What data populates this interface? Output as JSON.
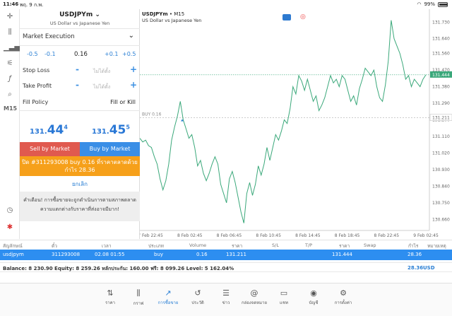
{
  "status": {
    "time": "11:46",
    "date": "พฤ. 9 ก.พ.",
    "battery": "99%"
  },
  "toolbar": {
    "timeframe": "M15",
    "icons": [
      "crosshair-icon",
      "candles-icon",
      "bars-icon",
      "settings-icon",
      "function-icon",
      "objects-icon",
      "timeframe-label",
      "clock-icon",
      "mt-icon"
    ]
  },
  "panel": {
    "symbol": "USDJPYm",
    "symbol_desc": "US Dollar vs Japanese Yen",
    "execution": "Market Execution",
    "volume": {
      "m05": "-0.5",
      "m01": "-0.1",
      "value": "0.16",
      "p01": "+0.1",
      "p05": "+0.5"
    },
    "stop_loss": {
      "label": "Stop Loss",
      "minus": "-",
      "placeholder": "ไม่ได้ตั้ง",
      "plus": "+"
    },
    "take_profit": {
      "label": "Take Profit",
      "minus": "-",
      "placeholder": "ไม่ได้ตั้ง",
      "plus": "+"
    },
    "fill_policy": {
      "label": "Fill Policy",
      "value": "Fill or Kill"
    },
    "bid": {
      "main": "131.",
      "big": "44",
      "sup": "4"
    },
    "ask": {
      "main": "131.",
      "big": "45",
      "sup": "5"
    },
    "sell_label": "Sell by Market",
    "buy_label": "Buy by Market",
    "close_line1": "ปิด #311293008 buy 0.16 ที่ราคาตลาดด้วย",
    "close_line2": "กำไร 28.36",
    "cancel": "ยกเลิก",
    "warn_line1": "คำเตือน! การซื้อขายจะถูกดำเนินการตามสภาพตลาด",
    "warn_line2": "ความแตกต่างกับราคาที่ส่งอาจมีมาก!"
  },
  "chart": {
    "title": "USDJPYm",
    "timeframe": "M15",
    "subtitle": "US Dollar vs Japanese Yen",
    "buy_line_label": "BUY 0.16",
    "current_price": "131.444",
    "open_price": "131.211",
    "y_ticks": [
      "131.730",
      "131.640",
      "131.560",
      "131.470",
      "131.380",
      "131.290",
      "131.200",
      "131.110",
      "131.020",
      "130.930",
      "130.840",
      "130.750",
      "130.660"
    ],
    "x_ticks": [
      "7 Feb 22:45",
      "8 Feb 02:45",
      "8 Feb 06:45",
      "8 Feb 10:45",
      "8 Feb 14:45",
      "8 Feb 18:45",
      "8 Feb 22:45",
      "9 Feb 02:45"
    ]
  },
  "chart_data": {
    "type": "line",
    "ylim": [
      130.6,
      131.8
    ],
    "series": [
      {
        "values": [
          131.1,
          131.08,
          131.09,
          131.06,
          131.05,
          131.0,
          130.96,
          130.88,
          130.82,
          130.87,
          130.96,
          131.09,
          131.16,
          131.22,
          131.3,
          131.2,
          131.15,
          131.1,
          131.12,
          131.05,
          130.95,
          130.98,
          130.91,
          130.87,
          130.91,
          130.96,
          131.0,
          130.96,
          130.85,
          130.8,
          130.75,
          130.88,
          130.92,
          130.86,
          130.78,
          130.7,
          130.64,
          130.8,
          130.86,
          130.79,
          130.85,
          130.95,
          130.9,
          130.96,
          131.05,
          130.98,
          131.05,
          131.12,
          131.09,
          131.14,
          131.2,
          131.18,
          131.26,
          131.38,
          131.34,
          131.44,
          131.41,
          131.36,
          131.42,
          131.36,
          131.3,
          131.33,
          131.25,
          131.28,
          131.32,
          131.38,
          131.44,
          131.4,
          131.42,
          131.38,
          131.44,
          131.42,
          131.36,
          131.3,
          131.33,
          131.28,
          131.37,
          131.42,
          131.48,
          131.46,
          131.44,
          131.47,
          131.38,
          131.32,
          131.3,
          131.39,
          131.52,
          131.74,
          131.64,
          131.6,
          131.56,
          131.5,
          131.42,
          131.44,
          131.38,
          131.42,
          131.4,
          131.38,
          131.42,
          131.444
        ]
      }
    ]
  },
  "table": {
    "headers": [
      "สัญลักษณ์",
      "ตั๋ว",
      "เวลา",
      "ประเภท",
      "Volume",
      "ราคา",
      "S/L",
      "T/P",
      "ราคา",
      "Swap",
      "กำไร",
      "หมายเหตุ"
    ],
    "row": {
      "symbol": "usdjpym",
      "ticket": "311293008",
      "time": "02.08 01:55",
      "type": "buy",
      "volume": "0.16",
      "price": "131.211",
      "cur_price": "131.444",
      "profit": "28.36"
    },
    "balance": "Balance: 8 230.90  Equity: 8 259.26  หลักประกัน: 160.00  ฟรี: 8 099.26  Level: 5 162.04%",
    "balance_profit": "28.36",
    "currency": "USD"
  },
  "nav": [
    {
      "label": "ราคา",
      "icon": "⇅"
    },
    {
      "label": "กราฟ",
      "icon": "⫼"
    },
    {
      "label": "การซื้อขาย",
      "icon": "↗"
    },
    {
      "label": "ประวัติ",
      "icon": "↺"
    },
    {
      "label": "ข่าว",
      "icon": "☰"
    },
    {
      "label": "กล่องจดหมาย",
      "icon": "@"
    },
    {
      "label": "แชท",
      "icon": "▭"
    },
    {
      "label": "บัญชี",
      "icon": "◉"
    },
    {
      "label": "การตั้งค่า",
      "icon": "⚙"
    }
  ],
  "colors": {
    "accent": "#2a7fd4",
    "sell": "#e05a4f",
    "buy": "#3a8ee6",
    "close": "#f6a01a",
    "line": "#3aa87a"
  }
}
